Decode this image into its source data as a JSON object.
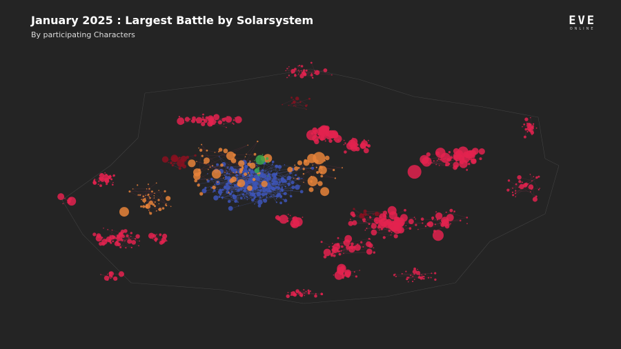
{
  "header": {
    "title": "January 2025 : Largest Battle by Solarsystem",
    "subtitle": "By participating Characters"
  },
  "logo": {
    "name": "EVE",
    "tagline": "ONLINE"
  }
}
